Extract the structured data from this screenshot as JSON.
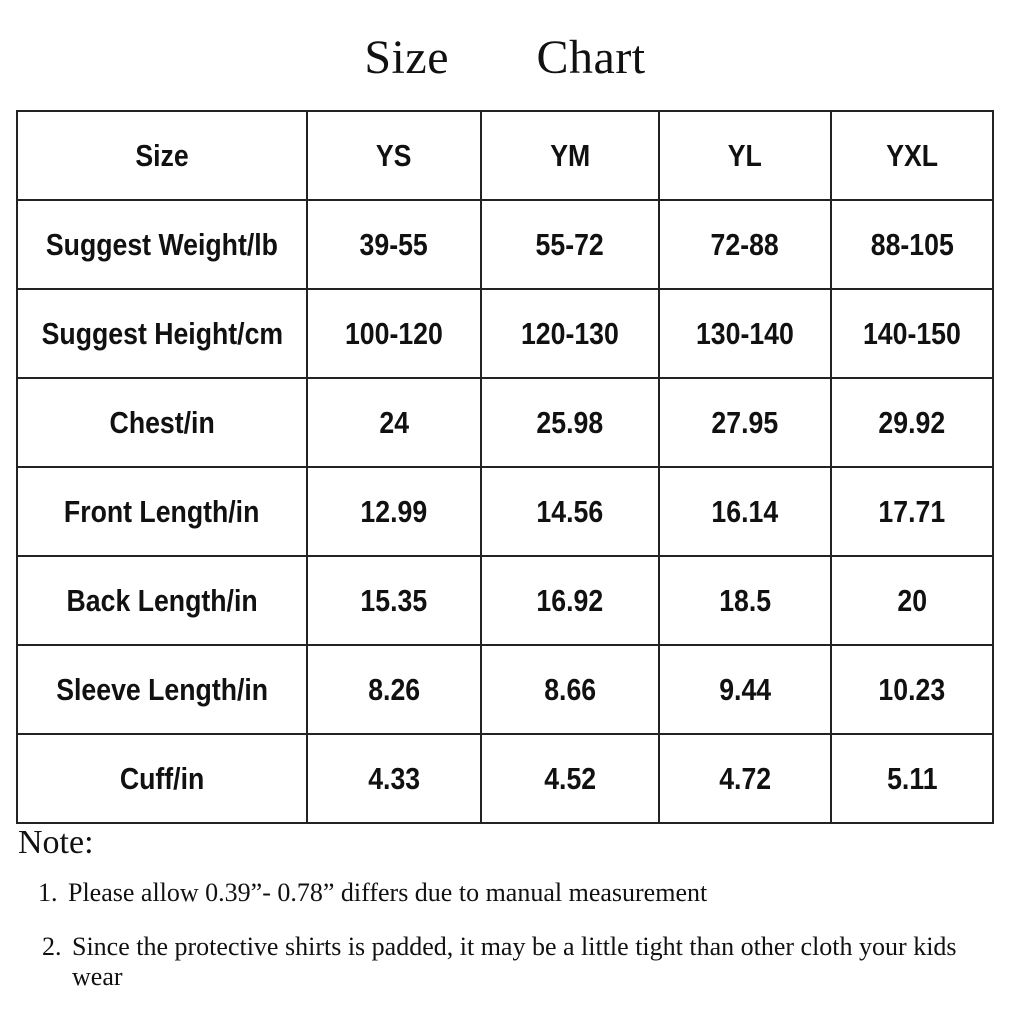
{
  "title": "Size       Chart",
  "table": {
    "headers": [
      "Size",
      "YS",
      "YM",
      "YL",
      "YXL"
    ],
    "rows": [
      [
        "Suggest Weight/lb",
        "39-55",
        "55-72",
        "72-88",
        "88-105"
      ],
      [
        "Suggest Height/cm",
        "100-120",
        "120-130",
        "130-140",
        "140-150"
      ],
      [
        "Chest/in",
        "24",
        "25.98",
        "27.95",
        "29.92"
      ],
      [
        "Front Length/in",
        "12.99",
        "14.56",
        "16.14",
        "17.71"
      ],
      [
        "Back Length/in",
        "15.35",
        "16.92",
        "18.5",
        "20"
      ],
      [
        "Sleeve Length/in",
        "8.26",
        "8.66",
        "9.44",
        "10.23"
      ],
      [
        "Cuff/in",
        "4.33",
        "4.52",
        "4.72",
        "5.11"
      ]
    ]
  },
  "note": {
    "label": "Note:",
    "items": [
      {
        "num": "1.",
        "text": "Please allow 0.39”- 0.78” differs due to manual measurement"
      },
      {
        "num": "2.",
        "text": "Since the protective shirts is padded, it may be a little tight than other cloth your kids wear"
      }
    ]
  }
}
